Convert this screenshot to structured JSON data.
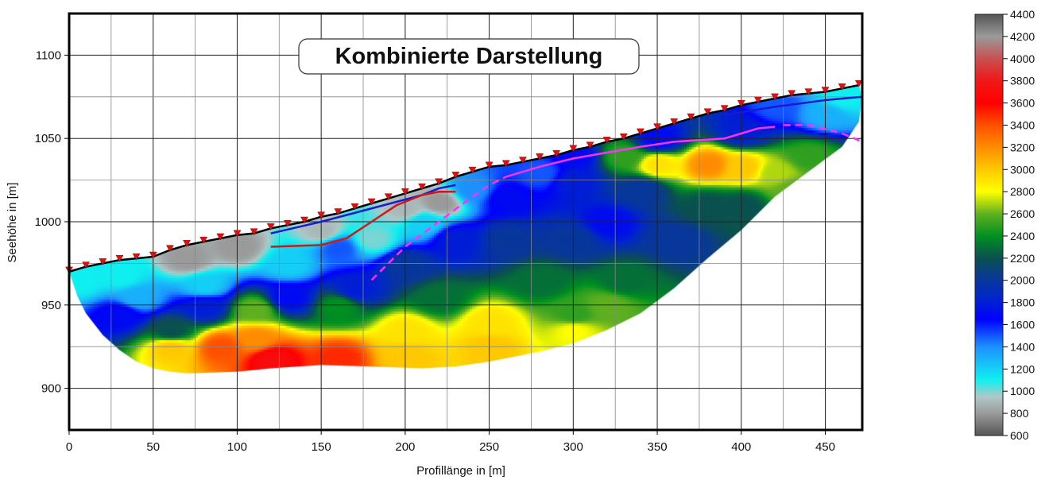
{
  "chart_data": {
    "type": "heatmap",
    "title": "Kombinierte Darstellung",
    "xlabel": "Profillänge in [m]",
    "ylabel": "Seehöhe in [m]",
    "xlim": [
      0,
      472
    ],
    "ylim": [
      875,
      1125
    ],
    "x_ticks": [
      "0",
      "50",
      "100",
      "150",
      "200",
      "250",
      "300",
      "350",
      "400",
      "450"
    ],
    "x_tick_values": [
      0,
      50,
      100,
      150,
      200,
      250,
      300,
      350,
      400,
      450
    ],
    "y_ticks": [
      "900",
      "950",
      "1000",
      "1050",
      "1100"
    ],
    "y_tick_values": [
      900,
      950,
      1000,
      1050,
      1100
    ],
    "grid": true,
    "colorbar": {
      "range": [
        600,
        4400
      ],
      "ticks": [
        "4400",
        "4200",
        "4000",
        "3800",
        "3600",
        "3400",
        "3200",
        "3000",
        "2800",
        "2600",
        "2400",
        "2200",
        "2000",
        "1800",
        "1600",
        "1400",
        "1200",
        "1000",
        "800",
        "600"
      ],
      "stops": [
        [
          600,
          "#555555"
        ],
        [
          800,
          "#9a9a9a"
        ],
        [
          950,
          "#b0c8c8"
        ],
        [
          1100,
          "#10f0f0"
        ],
        [
          1400,
          "#1e90ff"
        ],
        [
          1650,
          "#0000ff"
        ],
        [
          1850,
          "#0028c8"
        ],
        [
          2050,
          "#0a3c8c"
        ],
        [
          2200,
          "#0a5050"
        ],
        [
          2400,
          "#009020"
        ],
        [
          2600,
          "#60b020"
        ],
        [
          2800,
          "#ffff00"
        ],
        [
          3000,
          "#ffc800"
        ],
        [
          3200,
          "#ff8c00"
        ],
        [
          3400,
          "#ff5000"
        ],
        [
          3600,
          "#ff0000"
        ],
        [
          3800,
          "#f01818"
        ],
        [
          4000,
          "#c85050"
        ],
        [
          4200,
          "#9a9a9a"
        ],
        [
          4400,
          "#555555"
        ]
      ]
    },
    "surface": [
      [
        0,
        970
      ],
      [
        10,
        973
      ],
      [
        20,
        975
      ],
      [
        30,
        977
      ],
      [
        40,
        978
      ],
      [
        50,
        979
      ],
      [
        60,
        983
      ],
      [
        70,
        986
      ],
      [
        80,
        988
      ],
      [
        90,
        990
      ],
      [
        100,
        992
      ],
      [
        110,
        993
      ],
      [
        120,
        996
      ],
      [
        130,
        998
      ],
      [
        140,
        1000
      ],
      [
        150,
        1003
      ],
      [
        160,
        1005
      ],
      [
        170,
        1008
      ],
      [
        180,
        1011
      ],
      [
        190,
        1014
      ],
      [
        200,
        1017
      ],
      [
        210,
        1020
      ],
      [
        220,
        1023
      ],
      [
        230,
        1027
      ],
      [
        240,
        1030
      ],
      [
        250,
        1033
      ],
      [
        260,
        1034
      ],
      [
        270,
        1036
      ],
      [
        280,
        1038
      ],
      [
        290,
        1040
      ],
      [
        300,
        1043
      ],
      [
        310,
        1045
      ],
      [
        320,
        1048
      ],
      [
        330,
        1050
      ],
      [
        340,
        1053
      ],
      [
        350,
        1056
      ],
      [
        360,
        1059
      ],
      [
        370,
        1062
      ],
      [
        380,
        1065
      ],
      [
        390,
        1067
      ],
      [
        400,
        1070
      ],
      [
        410,
        1072
      ],
      [
        420,
        1074
      ],
      [
        430,
        1076
      ],
      [
        440,
        1077
      ],
      [
        450,
        1078
      ],
      [
        460,
        1080
      ],
      [
        470,
        1082
      ]
    ],
    "bottom": [
      [
        0,
        970
      ],
      [
        5,
        955
      ],
      [
        10,
        945
      ],
      [
        20,
        932
      ],
      [
        30,
        923
      ],
      [
        40,
        916
      ],
      [
        50,
        912
      ],
      [
        60,
        910
      ],
      [
        70,
        909
      ],
      [
        100,
        910
      ],
      [
        120,
        912
      ],
      [
        150,
        914
      ],
      [
        180,
        913
      ],
      [
        210,
        912
      ],
      [
        230,
        913
      ],
      [
        250,
        916
      ],
      [
        280,
        922
      ],
      [
        300,
        927
      ],
      [
        320,
        935
      ],
      [
        340,
        945
      ],
      [
        360,
        960
      ],
      [
        380,
        978
      ],
      [
        400,
        995
      ],
      [
        420,
        1015
      ],
      [
        440,
        1030
      ],
      [
        460,
        1045
      ],
      [
        470,
        1060
      ],
      [
        472,
        1075
      ]
    ],
    "velocity_points": [
      [
        5,
        965,
        1100
      ],
      [
        30,
        968,
        1100
      ],
      [
        70,
        978,
        800
      ],
      [
        100,
        985,
        800
      ],
      [
        150,
        995,
        900
      ],
      [
        200,
        1008,
        900
      ],
      [
        220,
        1012,
        800
      ],
      [
        40,
        955,
        1300
      ],
      [
        80,
        962,
        1200
      ],
      [
        130,
        975,
        1200
      ],
      [
        160,
        985,
        1500
      ],
      [
        180,
        990,
        1000
      ],
      [
        210,
        1000,
        1200
      ],
      [
        240,
        1020,
        1400
      ],
      [
        30,
        945,
        1700
      ],
      [
        80,
        950,
        1800
      ],
      [
        130,
        955,
        1700
      ],
      [
        170,
        960,
        1800
      ],
      [
        200,
        975,
        2000
      ],
      [
        230,
        990,
        1800
      ],
      [
        260,
        1015,
        1700
      ],
      [
        280,
        1030,
        1500
      ],
      [
        300,
        1025,
        1800
      ],
      [
        320,
        1000,
        1700
      ],
      [
        300,
        990,
        2000
      ],
      [
        260,
        990,
        2000
      ],
      [
        60,
        935,
        2200
      ],
      [
        110,
        948,
        2600
      ],
      [
        160,
        950,
        2400
      ],
      [
        220,
        955,
        2300
      ],
      [
        280,
        965,
        2300
      ],
      [
        330,
        965,
        2300
      ],
      [
        300,
        945,
        2500
      ],
      [
        360,
        990,
        2000
      ],
      [
        380,
        1010,
        2200
      ],
      [
        60,
        925,
        3000
      ],
      [
        90,
        925,
        3400
      ],
      [
        110,
        930,
        3200
      ],
      [
        120,
        918,
        3700
      ],
      [
        160,
        918,
        3500
      ],
      [
        200,
        920,
        3000
      ],
      [
        200,
        935,
        2900
      ],
      [
        250,
        925,
        3000
      ],
      [
        250,
        940,
        2900
      ],
      [
        300,
        935,
        2800
      ],
      [
        320,
        950,
        2600
      ],
      [
        350,
        1035,
        2900
      ],
      [
        380,
        1035,
        3200
      ],
      [
        400,
        1033,
        3000
      ],
      [
        420,
        1030,
        2700
      ],
      [
        440,
        1040,
        2500
      ],
      [
        400,
        1055,
        1800
      ],
      [
        350,
        1050,
        1700
      ],
      [
        450,
        1065,
        1300
      ],
      [
        460,
        1075,
        1100
      ],
      [
        420,
        1070,
        1500
      ],
      [
        330,
        1040,
        2500
      ],
      [
        300,
        1040,
        1700
      ],
      [
        340,
        1020,
        2000
      ],
      [
        400,
        1010,
        2200
      ],
      [
        430,
        1020,
        2600
      ]
    ],
    "lines": [
      {
        "name": "blue-interface",
        "color": "#1a1ad0",
        "dash": false,
        "points": [
          [
            120,
            993
          ],
          [
            150,
            1000
          ],
          [
            180,
            1008
          ],
          [
            210,
            1016
          ],
          [
            220,
            1020
          ],
          [
            230,
            1022
          ]
        ]
      },
      {
        "name": "blue-interface-right",
        "color": "#1a1ad0",
        "dash": false,
        "points": [
          [
            390,
            1064
          ],
          [
            420,
            1069
          ],
          [
            450,
            1073
          ],
          [
            472,
            1075
          ]
        ]
      },
      {
        "name": "red-interface",
        "color": "#d01818",
        "dash": false,
        "points": [
          [
            120,
            985
          ],
          [
            150,
            986
          ],
          [
            165,
            990
          ],
          [
            180,
            1000
          ],
          [
            195,
            1010
          ],
          [
            210,
            1016
          ],
          [
            220,
            1018
          ],
          [
            230,
            1018
          ]
        ]
      },
      {
        "name": "magenta-dashed",
        "color": "#ff30ff",
        "dash": true,
        "points": [
          [
            180,
            965
          ],
          [
            200,
            985
          ],
          [
            220,
            1000
          ],
          [
            240,
            1015
          ],
          [
            250,
            1022
          ],
          [
            260,
            1027
          ]
        ]
      },
      {
        "name": "magenta-solid",
        "color": "#ff30ff",
        "dash": false,
        "points": [
          [
            260,
            1027
          ],
          [
            280,
            1033
          ],
          [
            300,
            1038
          ],
          [
            340,
            1045
          ],
          [
            360,
            1048
          ],
          [
            390,
            1050
          ],
          [
            410,
            1056
          ],
          [
            420,
            1057
          ]
        ]
      },
      {
        "name": "magenta-dashed-right",
        "color": "#ff30ff",
        "dash": true,
        "points": [
          [
            425,
            1058
          ],
          [
            440,
            1058
          ],
          [
            460,
            1053
          ],
          [
            472,
            1048
          ]
        ]
      }
    ],
    "geophone_spacing": 10
  }
}
